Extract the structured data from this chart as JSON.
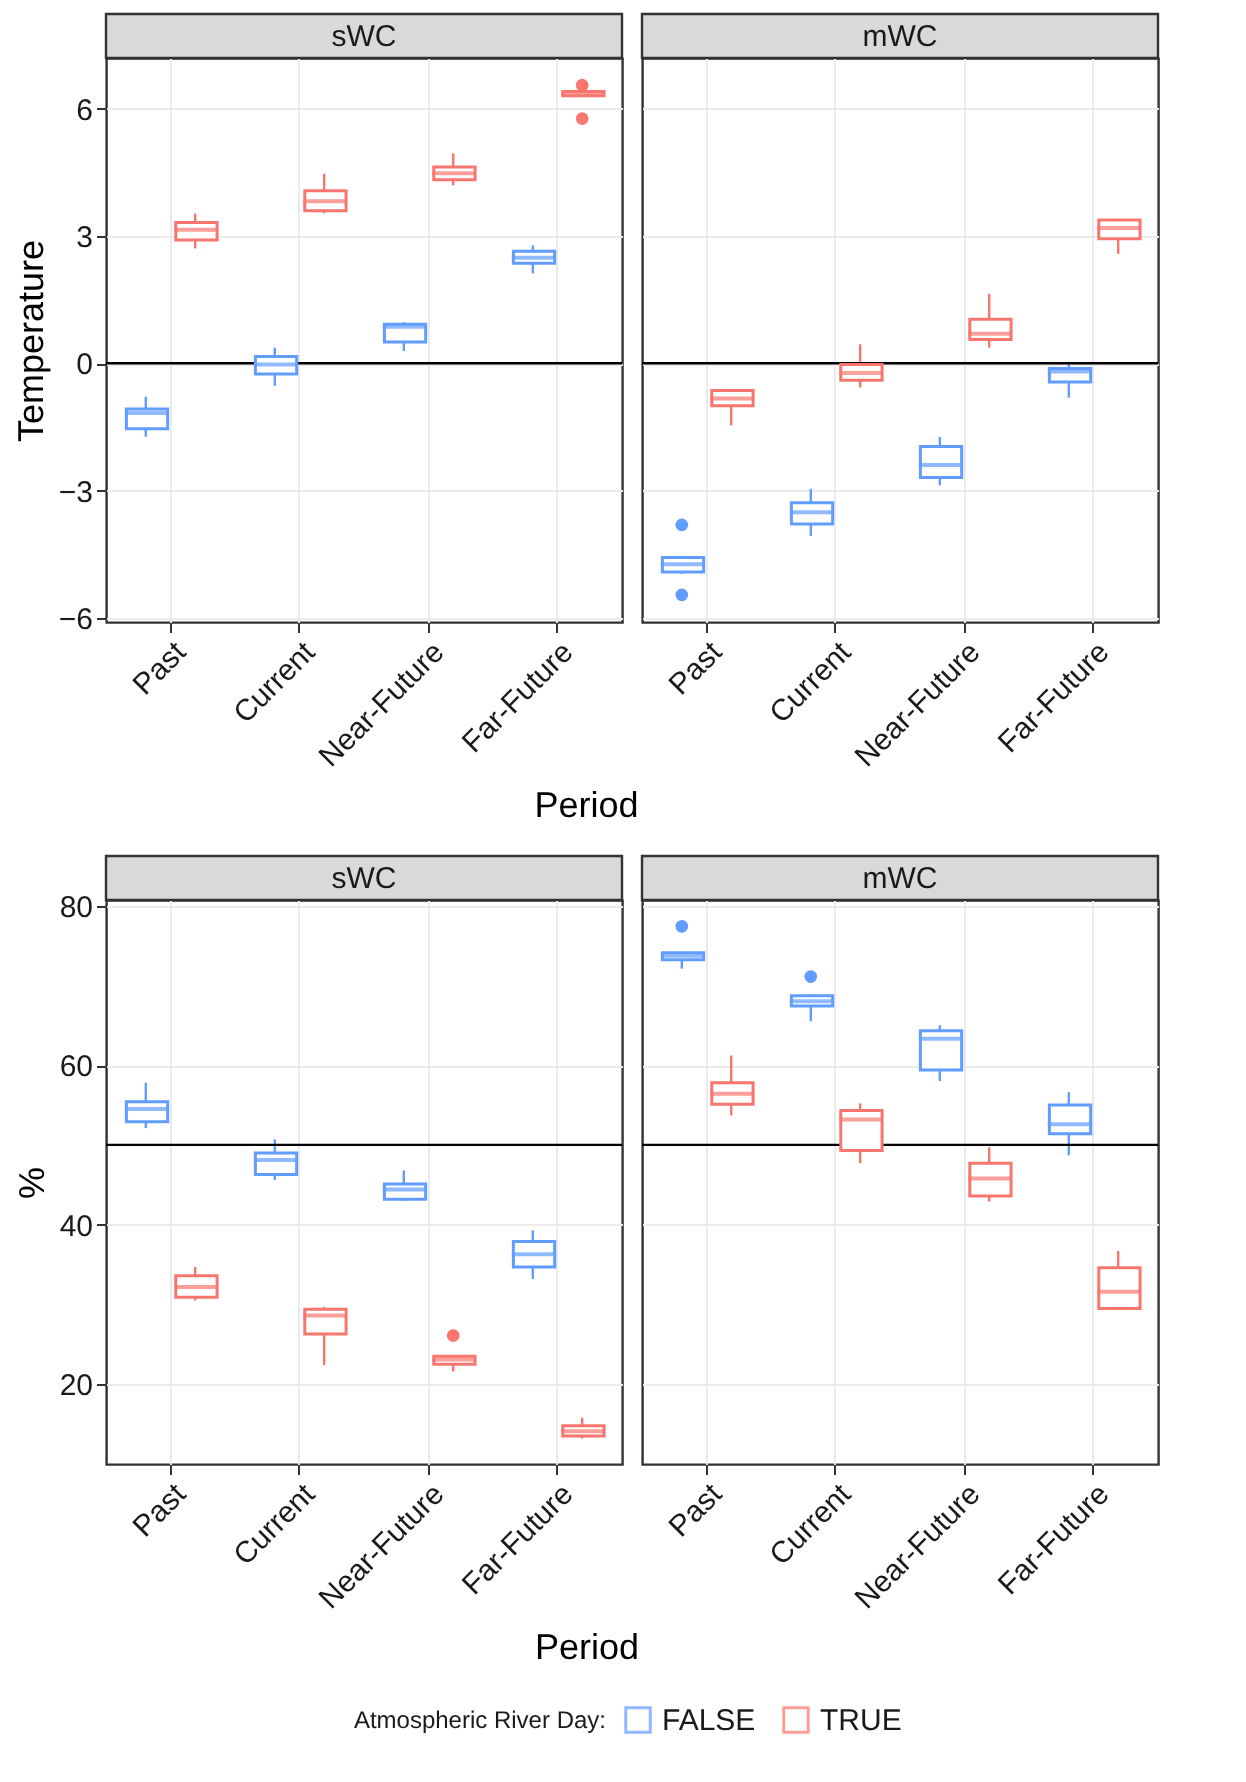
{
  "chart_data": [
    {
      "type": "box",
      "title": "sWC",
      "categories": [
        "Past",
        "Current",
        "Near-Future",
        "Far-Future"
      ],
      "ylabel": "Temperature",
      "xlabel": "Period",
      "ylim": [
        -6.1,
        7.2
      ],
      "yticks": [
        {
          "value": -6,
          "label": "−6"
        },
        {
          "value": -3,
          "label": "−3"
        },
        0,
        3,
        6
      ],
      "grid": true,
      "legend": "bottom",
      "legend_title": "Atmospheric River Day:",
      "ref_lines": [
        {
          "axis": "y",
          "value": 0,
          "color": "#000000"
        }
      ],
      "series": [
        {
          "name": "FALSE",
          "color": "#619cff",
          "boxes": [
            {
              "low": -1.73,
              "q1": -1.54,
              "median": -1.17,
              "q3": -1.08,
              "high": -0.79
            },
            {
              "low": -0.53,
              "q1": -0.25,
              "median": -0.03,
              "q3": 0.16,
              "high": 0.37
            },
            {
              "low": 0.29,
              "q1": 0.5,
              "median": 0.86,
              "q3": 0.92,
              "high": 0.97
            },
            {
              "low": 2.12,
              "q1": 2.36,
              "median": 2.49,
              "q3": 2.64,
              "high": 2.78
            }
          ]
        },
        {
          "name": "TRUE",
          "color": "#f8766d",
          "boxes": [
            {
              "low": 2.71,
              "q1": 2.91,
              "median": 3.15,
              "q3": 3.32,
              "high": 3.53
            },
            {
              "low": 3.54,
              "q1": 3.6,
              "median": 3.82,
              "q3": 4.07,
              "high": 4.47
            },
            {
              "low": 4.2,
              "q1": 4.33,
              "median": 4.48,
              "q3": 4.63,
              "high": 4.95
            },
            {
              "low": 6.28,
              "q1": 6.31,
              "median": 6.37,
              "q3": 6.41,
              "high": 6.43,
              "outliers": [
                6.56,
                5.77
              ]
            }
          ]
        }
      ]
    },
    {
      "type": "box",
      "title": "mWC",
      "categories": [
        "Past",
        "Current",
        "Near-Future",
        "Far-Future"
      ],
      "ylim": [
        -6.1,
        7.2
      ],
      "yticks": [
        -6,
        -3,
        0,
        3,
        6
      ],
      "tick_labels": "x",
      "grid": true,
      "legend": false,
      "ref_lines": [
        {
          "axis": "y",
          "value": 0,
          "color": "#000000"
        }
      ],
      "series": [
        {
          "name": "FALSE",
          "color": "#619cff",
          "boxes": [
            {
              "low": -4.96,
              "q1": -4.92,
              "median": -4.74,
              "q3": -4.58,
              "high": -4.57,
              "outliers": [
                -3.81,
                -5.46
              ]
            },
            {
              "low": -4.07,
              "q1": -3.79,
              "median": -3.51,
              "q3": -3.29,
              "high": -2.96
            },
            {
              "low": -2.88,
              "q1": -2.69,
              "median": -2.4,
              "q3": -1.96,
              "high": -1.74
            },
            {
              "low": -0.81,
              "q1": -0.44,
              "median": -0.19,
              "q3": -0.12,
              "high": 0.03
            }
          ]
        },
        {
          "name": "TRUE",
          "color": "#f8766d",
          "boxes": [
            {
              "low": -1.46,
              "q1": -1.0,
              "median": -0.83,
              "q3": -0.64,
              "high": -0.61
            },
            {
              "low": -0.57,
              "q1": -0.4,
              "median": -0.23,
              "q3": -0.03,
              "high": 0.45
            },
            {
              "low": 0.37,
              "q1": 0.56,
              "median": 0.7,
              "q3": 1.04,
              "high": 1.64
            },
            {
              "low": 2.58,
              "q1": 2.94,
              "median": 3.19,
              "q3": 3.38,
              "high": 3.41
            }
          ]
        }
      ]
    },
    {
      "type": "box",
      "title": "sWC",
      "categories": [
        "Past",
        "Current",
        "Near-Future",
        "Far-Future"
      ],
      "ylabel": "%",
      "xlabel": "Period",
      "ylim": [
        10,
        80.7
      ],
      "yticks": [
        20,
        40,
        60,
        80
      ],
      "grid": true,
      "legend": false,
      "ref_lines": [
        {
          "axis": "y",
          "value": 50,
          "color": "#000000"
        }
      ],
      "series": [
        {
          "name": "FALSE",
          "color": "#619cff",
          "boxes": [
            {
              "low": 52.1,
              "q1": 52.9,
              "median": 54.5,
              "q3": 55.4,
              "high": 57.8
            },
            {
              "low": 45.6,
              "q1": 46.3,
              "median": 48.1,
              "q3": 49.0,
              "high": 50.7
            },
            {
              "low": 43.0,
              "q1": 43.2,
              "median": 44.4,
              "q3": 45.1,
              "high": 46.8
            },
            {
              "low": 33.2,
              "q1": 34.7,
              "median": 36.3,
              "q3": 37.9,
              "high": 39.3
            }
          ]
        },
        {
          "name": "TRUE",
          "color": "#f8766d",
          "boxes": [
            {
              "low": 30.5,
              "q1": 30.9,
              "median": 32.2,
              "q3": 33.6,
              "high": 34.7
            },
            {
              "low": 22.4,
              "q1": 26.3,
              "median": 28.6,
              "q3": 29.4,
              "high": 29.7
            },
            {
              "low": 21.6,
              "q1": 22.5,
              "median": 23.1,
              "q3": 23.5,
              "high": 23.5,
              "outliers": [
                26.1
              ]
            },
            {
              "low": 13.2,
              "q1": 13.5,
              "median": 14.1,
              "q3": 14.8,
              "high": 15.8
            }
          ]
        }
      ]
    },
    {
      "type": "box",
      "title": "mWC",
      "categories": [
        "Past",
        "Current",
        "Near-Future",
        "Far-Future"
      ],
      "ylim": [
        10,
        80.7
      ],
      "yticks": [
        20,
        40,
        60,
        80
      ],
      "tick_labels": "x",
      "grid": true,
      "legend": false,
      "ref_lines": [
        {
          "axis": "y",
          "value": 50,
          "color": "#000000"
        }
      ],
      "series": [
        {
          "name": "FALSE",
          "color": "#619cff",
          "boxes": [
            {
              "low": 72.1,
              "q1": 73.2,
              "median": 73.7,
              "q3": 74.1,
              "high": 74.1,
              "outliers": [
                77.4
              ]
            },
            {
              "low": 65.5,
              "q1": 67.4,
              "median": 68.0,
              "q3": 68.7,
              "high": 68.9,
              "outliers": [
                71.1
              ]
            },
            {
              "low": 58.0,
              "q1": 59.4,
              "median": 63.3,
              "q3": 64.3,
              "high": 65.0
            },
            {
              "low": 48.7,
              "q1": 51.4,
              "median": 52.6,
              "q3": 55.0,
              "high": 56.6
            }
          ]
        },
        {
          "name": "TRUE",
          "color": "#f8766d",
          "boxes": [
            {
              "low": 53.7,
              "q1": 55.1,
              "median": 56.4,
              "q3": 57.8,
              "high": 61.2
            },
            {
              "low": 47.7,
              "q1": 49.3,
              "median": 53.2,
              "q3": 54.3,
              "high": 55.2
            },
            {
              "low": 42.9,
              "q1": 43.6,
              "median": 45.8,
              "q3": 47.7,
              "high": 49.7
            },
            {
              "low": 29.4,
              "q1": 29.5,
              "median": 31.6,
              "q3": 34.6,
              "high": 36.7
            }
          ]
        }
      ]
    }
  ]
}
